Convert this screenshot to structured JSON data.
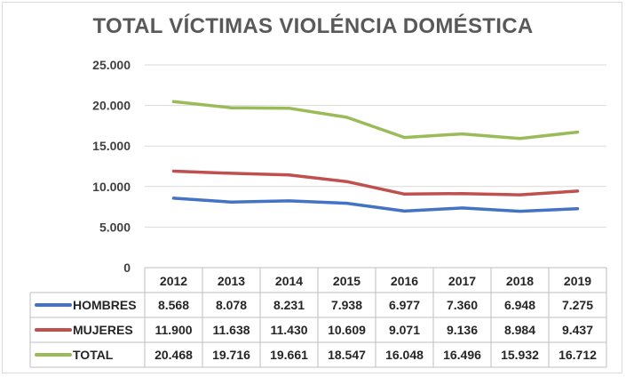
{
  "chart_data": {
    "type": "line",
    "title": "TOTAL VÍCTIMAS VIOLÉNCIA DOMÉSTICA",
    "categories": [
      "2012",
      "2013",
      "2014",
      "2015",
      "2016",
      "2017",
      "2018",
      "2019"
    ],
    "ylim": [
      0,
      25000
    ],
    "yticks": [
      {
        "value": 0,
        "label": "0"
      },
      {
        "value": 5000,
        "label": "5.000"
      },
      {
        "value": 10000,
        "label": "10.000"
      },
      {
        "value": 15000,
        "label": "15.000"
      },
      {
        "value": 20000,
        "label": "20.000"
      },
      {
        "value": 25000,
        "label": "25.000"
      }
    ],
    "grid": true,
    "legend": "data-table",
    "series": [
      {
        "name": "HOMBRES",
        "color": "#4472c4",
        "values": [
          8568,
          8078,
          8231,
          7938,
          6977,
          7360,
          6948,
          7275
        ],
        "labels": [
          "8.568",
          "8.078",
          "8.231",
          "7.938",
          "6.977",
          "7.360",
          "6.948",
          "7.275"
        ]
      },
      {
        "name": "MUJERES",
        "color": "#c0504d",
        "values": [
          11900,
          11638,
          11430,
          10609,
          9071,
          9136,
          8984,
          9437
        ],
        "labels": [
          "11.900",
          "11.638",
          "11.430",
          "10.609",
          "9.071",
          "9.136",
          "8.984",
          "9.437"
        ]
      },
      {
        "name": "TOTAL",
        "color": "#9bbb59",
        "values": [
          20468,
          19716,
          19661,
          18547,
          16048,
          16496,
          15932,
          16712
        ],
        "labels": [
          "20.468",
          "19.716",
          "19.661",
          "18.547",
          "16.048",
          "16.496",
          "15.932",
          "16.712"
        ]
      }
    ]
  }
}
